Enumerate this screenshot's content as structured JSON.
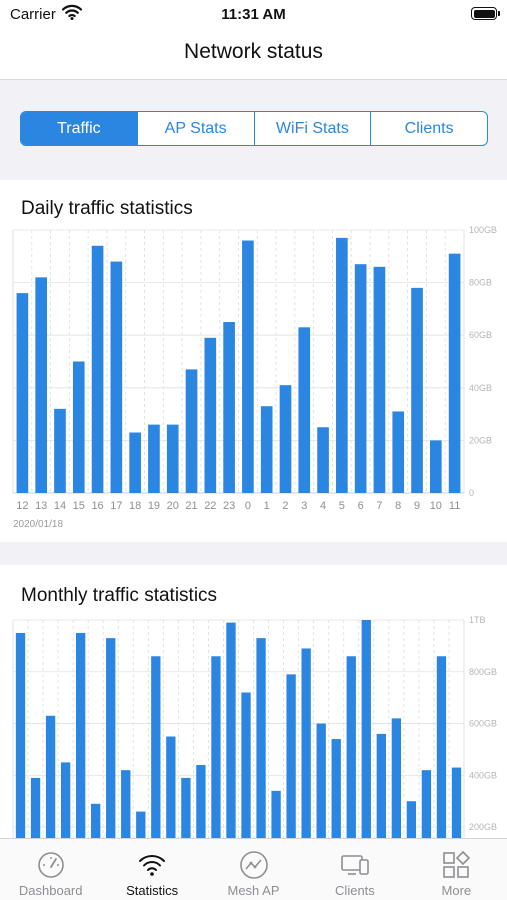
{
  "status_bar": {
    "carrier": "Carrier",
    "time": "11:31 AM"
  },
  "nav": {
    "title": "Network status"
  },
  "segments": [
    {
      "label": "Traffic",
      "active": true
    },
    {
      "label": "AP Stats",
      "active": false
    },
    {
      "label": "WiFi Stats",
      "active": false
    },
    {
      "label": "Clients",
      "active": false
    }
  ],
  "colors": {
    "accent": "#2a86e0",
    "bar": "#2a86e0",
    "muted": "#8e8e93"
  },
  "daily": {
    "title": "Daily traffic statistics",
    "date_label": "2020/01/18"
  },
  "monthly": {
    "title": "Monthly traffic statistics"
  },
  "chart_data": [
    {
      "type": "bar",
      "title": "Daily traffic statistics",
      "categories": [
        "12",
        "13",
        "14",
        "15",
        "16",
        "17",
        "18",
        "19",
        "20",
        "21",
        "22",
        "23",
        "0",
        "1",
        "2",
        "3",
        "4",
        "5",
        "6",
        "7",
        "8",
        "9",
        "10",
        "11"
      ],
      "values": [
        76,
        82,
        32,
        50,
        94,
        88,
        23,
        26,
        26,
        47,
        59,
        65,
        96,
        33,
        41,
        63,
        25,
        97,
        87,
        86,
        31,
        78,
        20,
        91
      ],
      "unit": "GB",
      "ylim": [
        0,
        100
      ],
      "y_ticks": [
        "0",
        "20GB",
        "40GB",
        "60GB",
        "80GB",
        "100GB"
      ],
      "y_tick_values": [
        0,
        20,
        40,
        60,
        80,
        100
      ],
      "grid": true,
      "axis_position": "right"
    },
    {
      "type": "bar",
      "title": "Monthly traffic statistics",
      "values": [
        950,
        390,
        630,
        450,
        950,
        290,
        930,
        420,
        260,
        860,
        550,
        390,
        440,
        860,
        990,
        720,
        930,
        340,
        790,
        890,
        600,
        540,
        860,
        1000,
        560,
        620,
        300,
        420,
        860,
        430
      ],
      "unit": "GB",
      "ylim": [
        100,
        1000
      ],
      "y_ticks": [
        "200GB",
        "400GB",
        "600GB",
        "800GB",
        "1TB"
      ],
      "y_tick_values": [
        200,
        400,
        600,
        800,
        1000
      ],
      "grid": true,
      "axis_position": "right"
    }
  ],
  "tabs": [
    {
      "label": "Dashboard",
      "icon": "gauge-icon",
      "active": false
    },
    {
      "label": "Statistics",
      "icon": "wifi-icon",
      "active": true
    },
    {
      "label": "Mesh AP",
      "icon": "mesh-icon",
      "active": false
    },
    {
      "label": "Clients",
      "icon": "devices-icon",
      "active": false
    },
    {
      "label": "More",
      "icon": "grid-icon",
      "active": false
    }
  ]
}
